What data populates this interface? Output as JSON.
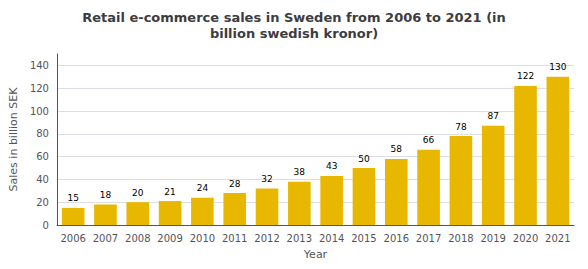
{
  "chart_data": {
    "type": "bar",
    "title": "Retail e-commerce sales in Sweden from 2006 to 2021 (in\nbillion swedish kronor)",
    "x_label": "Year",
    "y_label": "Sales in billion SEK",
    "categories": [
      "2006",
      "2007",
      "2008",
      "2009",
      "2010",
      "2011",
      "2012",
      "2013",
      "2014",
      "2015",
      "2016",
      "2017",
      "2018",
      "2019",
      "2020",
      "2021"
    ],
    "values": [
      15,
      18,
      20,
      21,
      24,
      28,
      32,
      38,
      43,
      50,
      58,
      66,
      78,
      87,
      122,
      130
    ],
    "color": "#E8B800",
    "ylim": [
      0,
      150
    ],
    "yticks": [
      0,
      20,
      40,
      60,
      80,
      100,
      120,
      140
    ],
    "grid": true,
    "data_labels": true
  }
}
